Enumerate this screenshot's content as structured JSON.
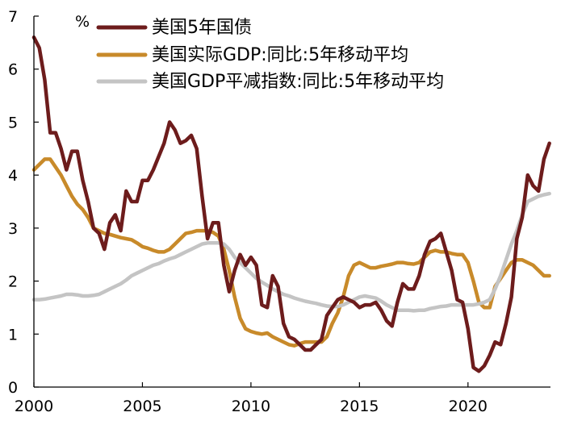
{
  "chart_data": {
    "type": "line",
    "ylabel": "%",
    "ylim": [
      0,
      7
    ],
    "xlim": [
      2000,
      2023.8
    ],
    "y_ticks": [
      "0",
      "1",
      "2",
      "3",
      "4",
      "5",
      "6",
      "7"
    ],
    "x_ticks": [
      "2000",
      "2005",
      "2010",
      "2015",
      "2020"
    ],
    "grid": false,
    "legend_position": "top",
    "series": [
      {
        "name": "美国5年国债",
        "color": "#6d1c1c",
        "points": [
          [
            2000.0,
            6.6
          ],
          [
            2000.25,
            6.4
          ],
          [
            2000.5,
            5.8
          ],
          [
            2000.75,
            4.8
          ],
          [
            2001.0,
            4.8
          ],
          [
            2001.25,
            4.5
          ],
          [
            2001.5,
            4.1
          ],
          [
            2001.75,
            4.45
          ],
          [
            2002.0,
            4.45
          ],
          [
            2002.25,
            3.9
          ],
          [
            2002.5,
            3.5
          ],
          [
            2002.75,
            3.0
          ],
          [
            2003.0,
            2.9
          ],
          [
            2003.25,
            2.6
          ],
          [
            2003.5,
            3.1
          ],
          [
            2003.75,
            3.25
          ],
          [
            2004.0,
            2.95
          ],
          [
            2004.25,
            3.7
          ],
          [
            2004.5,
            3.5
          ],
          [
            2004.75,
            3.5
          ],
          [
            2005.0,
            3.9
          ],
          [
            2005.25,
            3.9
          ],
          [
            2005.5,
            4.1
          ],
          [
            2005.75,
            4.35
          ],
          [
            2006.0,
            4.6
          ],
          [
            2006.25,
            5.0
          ],
          [
            2006.5,
            4.85
          ],
          [
            2006.75,
            4.6
          ],
          [
            2007.0,
            4.65
          ],
          [
            2007.25,
            4.75
          ],
          [
            2007.5,
            4.5
          ],
          [
            2007.75,
            3.6
          ],
          [
            2008.0,
            2.8
          ],
          [
            2008.25,
            3.1
          ],
          [
            2008.5,
            3.1
          ],
          [
            2008.75,
            2.3
          ],
          [
            2009.0,
            1.8
          ],
          [
            2009.25,
            2.2
          ],
          [
            2009.5,
            2.5
          ],
          [
            2009.75,
            2.3
          ],
          [
            2010.0,
            2.45
          ],
          [
            2010.25,
            2.3
          ],
          [
            2010.5,
            1.55
          ],
          [
            2010.75,
            1.5
          ],
          [
            2011.0,
            2.1
          ],
          [
            2011.25,
            1.9
          ],
          [
            2011.5,
            1.2
          ],
          [
            2011.75,
            0.95
          ],
          [
            2012.0,
            0.9
          ],
          [
            2012.25,
            0.8
          ],
          [
            2012.5,
            0.7
          ],
          [
            2012.75,
            0.7
          ],
          [
            2013.0,
            0.8
          ],
          [
            2013.25,
            0.9
          ],
          [
            2013.5,
            1.35
          ],
          [
            2013.75,
            1.5
          ],
          [
            2014.0,
            1.65
          ],
          [
            2014.25,
            1.7
          ],
          [
            2014.5,
            1.65
          ],
          [
            2014.75,
            1.6
          ],
          [
            2015.0,
            1.5
          ],
          [
            2015.25,
            1.55
          ],
          [
            2015.5,
            1.55
          ],
          [
            2015.75,
            1.6
          ],
          [
            2016.0,
            1.45
          ],
          [
            2016.25,
            1.25
          ],
          [
            2016.5,
            1.15
          ],
          [
            2016.75,
            1.6
          ],
          [
            2017.0,
            1.95
          ],
          [
            2017.25,
            1.85
          ],
          [
            2017.5,
            1.85
          ],
          [
            2017.75,
            2.1
          ],
          [
            2018.0,
            2.5
          ],
          [
            2018.25,
            2.75
          ],
          [
            2018.5,
            2.8
          ],
          [
            2018.75,
            2.9
          ],
          [
            2019.0,
            2.55
          ],
          [
            2019.25,
            2.2
          ],
          [
            2019.5,
            1.65
          ],
          [
            2019.75,
            1.6
          ],
          [
            2020.0,
            1.1
          ],
          [
            2020.25,
            0.37
          ],
          [
            2020.5,
            0.3
          ],
          [
            2020.75,
            0.4
          ],
          [
            2021.0,
            0.6
          ],
          [
            2021.25,
            0.85
          ],
          [
            2021.5,
            0.8
          ],
          [
            2021.75,
            1.2
          ],
          [
            2022.0,
            1.7
          ],
          [
            2022.25,
            2.8
          ],
          [
            2022.5,
            3.2
          ],
          [
            2022.75,
            4.0
          ],
          [
            2023.0,
            3.8
          ],
          [
            2023.25,
            3.7
          ],
          [
            2023.5,
            4.3
          ],
          [
            2023.75,
            4.6
          ]
        ]
      },
      {
        "name": "美国实际GDP:同比:5年移动平均",
        "color": "#c88a2a",
        "points": [
          [
            2000.0,
            4.1
          ],
          [
            2000.25,
            4.2
          ],
          [
            2000.5,
            4.3
          ],
          [
            2000.75,
            4.3
          ],
          [
            2001.0,
            4.15
          ],
          [
            2001.25,
            4.0
          ],
          [
            2001.5,
            3.8
          ],
          [
            2001.75,
            3.6
          ],
          [
            2002.0,
            3.45
          ],
          [
            2002.25,
            3.35
          ],
          [
            2002.5,
            3.2
          ],
          [
            2002.75,
            3.0
          ],
          [
            2003.0,
            2.95
          ],
          [
            2003.25,
            2.9
          ],
          [
            2003.5,
            2.88
          ],
          [
            2003.75,
            2.85
          ],
          [
            2004.0,
            2.82
          ],
          [
            2004.25,
            2.8
          ],
          [
            2004.5,
            2.78
          ],
          [
            2004.75,
            2.72
          ],
          [
            2005.0,
            2.65
          ],
          [
            2005.25,
            2.62
          ],
          [
            2005.5,
            2.58
          ],
          [
            2005.75,
            2.55
          ],
          [
            2006.0,
            2.55
          ],
          [
            2006.25,
            2.6
          ],
          [
            2006.5,
            2.7
          ],
          [
            2006.75,
            2.8
          ],
          [
            2007.0,
            2.9
          ],
          [
            2007.25,
            2.92
          ],
          [
            2007.5,
            2.95
          ],
          [
            2007.75,
            2.95
          ],
          [
            2008.0,
            2.95
          ],
          [
            2008.25,
            2.92
          ],
          [
            2008.5,
            2.85
          ],
          [
            2008.75,
            2.6
          ],
          [
            2009.0,
            2.2
          ],
          [
            2009.25,
            1.7
          ],
          [
            2009.5,
            1.3
          ],
          [
            2009.75,
            1.1
          ],
          [
            2010.0,
            1.05
          ],
          [
            2010.25,
            1.02
          ],
          [
            2010.5,
            1.0
          ],
          [
            2010.75,
            1.02
          ],
          [
            2011.0,
            0.95
          ],
          [
            2011.25,
            0.9
          ],
          [
            2011.5,
            0.85
          ],
          [
            2011.75,
            0.8
          ],
          [
            2012.0,
            0.78
          ],
          [
            2012.25,
            0.82
          ],
          [
            2012.5,
            0.85
          ],
          [
            2012.75,
            0.85
          ],
          [
            2013.0,
            0.85
          ],
          [
            2013.25,
            0.85
          ],
          [
            2013.5,
            0.95
          ],
          [
            2013.75,
            1.2
          ],
          [
            2014.0,
            1.4
          ],
          [
            2014.25,
            1.7
          ],
          [
            2014.5,
            2.1
          ],
          [
            2014.75,
            2.3
          ],
          [
            2015.0,
            2.35
          ],
          [
            2015.25,
            2.3
          ],
          [
            2015.5,
            2.25
          ],
          [
            2015.75,
            2.25
          ],
          [
            2016.0,
            2.28
          ],
          [
            2016.25,
            2.3
          ],
          [
            2016.5,
            2.32
          ],
          [
            2016.75,
            2.35
          ],
          [
            2017.0,
            2.35
          ],
          [
            2017.25,
            2.33
          ],
          [
            2017.5,
            2.32
          ],
          [
            2017.75,
            2.35
          ],
          [
            2018.0,
            2.45
          ],
          [
            2018.25,
            2.55
          ],
          [
            2018.5,
            2.58
          ],
          [
            2018.75,
            2.55
          ],
          [
            2019.0,
            2.55
          ],
          [
            2019.25,
            2.52
          ],
          [
            2019.5,
            2.5
          ],
          [
            2019.75,
            2.5
          ],
          [
            2020.0,
            2.35
          ],
          [
            2020.25,
            2.0
          ],
          [
            2020.5,
            1.6
          ],
          [
            2020.75,
            1.5
          ],
          [
            2021.0,
            1.5
          ],
          [
            2021.25,
            1.9
          ],
          [
            2021.5,
            2.05
          ],
          [
            2021.75,
            2.2
          ],
          [
            2022.0,
            2.35
          ],
          [
            2022.25,
            2.4
          ],
          [
            2022.5,
            2.4
          ],
          [
            2022.75,
            2.35
          ],
          [
            2023.0,
            2.3
          ],
          [
            2023.25,
            2.2
          ],
          [
            2023.5,
            2.1
          ],
          [
            2023.75,
            2.1
          ]
        ]
      },
      {
        "name": "美国GDP平减指数:同比:5年移动平均",
        "color": "#c4c4c4",
        "points": [
          [
            2000.0,
            1.65
          ],
          [
            2000.25,
            1.65
          ],
          [
            2000.5,
            1.66
          ],
          [
            2000.75,
            1.68
          ],
          [
            2001.0,
            1.7
          ],
          [
            2001.25,
            1.72
          ],
          [
            2001.5,
            1.75
          ],
          [
            2001.75,
            1.75
          ],
          [
            2002.0,
            1.74
          ],
          [
            2002.25,
            1.72
          ],
          [
            2002.5,
            1.72
          ],
          [
            2002.75,
            1.73
          ],
          [
            2003.0,
            1.75
          ],
          [
            2003.25,
            1.8
          ],
          [
            2003.5,
            1.85
          ],
          [
            2003.75,
            1.9
          ],
          [
            2004.0,
            1.95
          ],
          [
            2004.25,
            2.02
          ],
          [
            2004.5,
            2.1
          ],
          [
            2004.75,
            2.15
          ],
          [
            2005.0,
            2.2
          ],
          [
            2005.25,
            2.25
          ],
          [
            2005.5,
            2.3
          ],
          [
            2005.75,
            2.33
          ],
          [
            2006.0,
            2.38
          ],
          [
            2006.25,
            2.42
          ],
          [
            2006.5,
            2.45
          ],
          [
            2006.75,
            2.5
          ],
          [
            2007.0,
            2.55
          ],
          [
            2007.25,
            2.6
          ],
          [
            2007.5,
            2.65
          ],
          [
            2007.75,
            2.7
          ],
          [
            2008.0,
            2.72
          ],
          [
            2008.25,
            2.72
          ],
          [
            2008.5,
            2.72
          ],
          [
            2008.75,
            2.7
          ],
          [
            2009.0,
            2.6
          ],
          [
            2009.25,
            2.45
          ],
          [
            2009.5,
            2.35
          ],
          [
            2009.75,
            2.25
          ],
          [
            2010.0,
            2.15
          ],
          [
            2010.25,
            2.05
          ],
          [
            2010.5,
            1.98
          ],
          [
            2010.75,
            1.92
          ],
          [
            2011.0,
            1.85
          ],
          [
            2011.25,
            1.8
          ],
          [
            2011.5,
            1.75
          ],
          [
            2011.75,
            1.72
          ],
          [
            2012.0,
            1.68
          ],
          [
            2012.25,
            1.65
          ],
          [
            2012.5,
            1.62
          ],
          [
            2012.75,
            1.6
          ],
          [
            2013.0,
            1.58
          ],
          [
            2013.25,
            1.55
          ],
          [
            2013.5,
            1.53
          ],
          [
            2013.75,
            1.52
          ],
          [
            2014.0,
            1.52
          ],
          [
            2014.25,
            1.55
          ],
          [
            2014.5,
            1.6
          ],
          [
            2014.75,
            1.65
          ],
          [
            2015.0,
            1.7
          ],
          [
            2015.25,
            1.72
          ],
          [
            2015.5,
            1.7
          ],
          [
            2015.75,
            1.68
          ],
          [
            2016.0,
            1.62
          ],
          [
            2016.25,
            1.55
          ],
          [
            2016.5,
            1.5
          ],
          [
            2016.75,
            1.45
          ],
          [
            2017.0,
            1.45
          ],
          [
            2017.25,
            1.45
          ],
          [
            2017.5,
            1.44
          ],
          [
            2017.75,
            1.45
          ],
          [
            2018.0,
            1.45
          ],
          [
            2018.25,
            1.48
          ],
          [
            2018.5,
            1.5
          ],
          [
            2018.75,
            1.52
          ],
          [
            2019.0,
            1.53
          ],
          [
            2019.25,
            1.55
          ],
          [
            2019.5,
            1.55
          ],
          [
            2019.75,
            1.55
          ],
          [
            2020.0,
            1.55
          ],
          [
            2020.25,
            1.55
          ],
          [
            2020.5,
            1.57
          ],
          [
            2020.75,
            1.6
          ],
          [
            2021.0,
            1.65
          ],
          [
            2021.25,
            1.85
          ],
          [
            2021.5,
            2.1
          ],
          [
            2021.75,
            2.4
          ],
          [
            2022.0,
            2.7
          ],
          [
            2022.25,
            2.95
          ],
          [
            2022.5,
            3.25
          ],
          [
            2022.75,
            3.5
          ],
          [
            2023.0,
            3.55
          ],
          [
            2023.25,
            3.6
          ],
          [
            2023.5,
            3.63
          ],
          [
            2023.75,
            3.65
          ]
        ]
      }
    ]
  }
}
